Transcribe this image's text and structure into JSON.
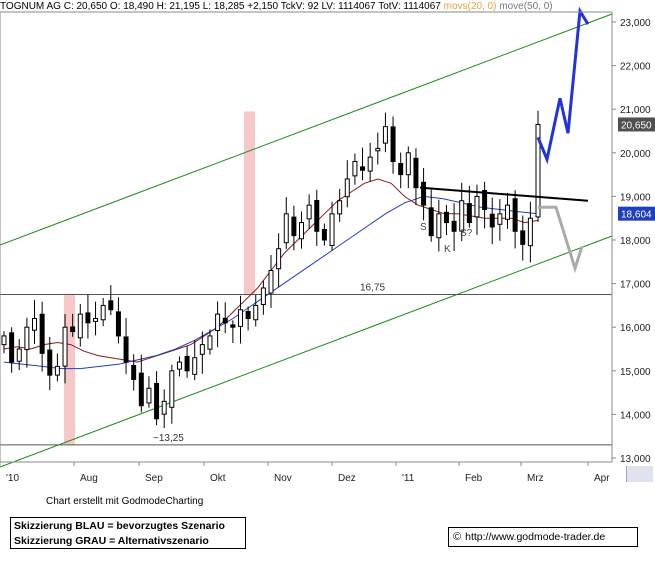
{
  "header": {
    "name": "TOGNUM AG",
    "close": "C: 20,650",
    "open": "O: 18,490",
    "high": "H: 21,195",
    "low": "L: 18,285",
    "change": "+2,150",
    "tickvolume": "TckV: 92",
    "lv": "LV: 1114067",
    "totv": "TotV: 1114067",
    "ma1": "movs(20, 0)",
    "ma2": "move(50, 0)"
  },
  "footer": {
    "credit": "Chart erstellt mit GodmodeCharting",
    "legend_blue": "Skizzierung BLAU = bevorzugtes Szenario",
    "legend_grey": "Skizzierung GRAU = Alternativszenario",
    "copyright": "©",
    "url": "http://www.godmode-trader.de"
  },
  "colors": {
    "candles": "#000000",
    "ma20": "#8b1a1a",
    "ma50": "#1f3fbf",
    "channel": "#1a8a1a",
    "highlight": "#f8c8c8",
    "blue_scenario": "#2233dd",
    "grey_scenario": "#aaaaaa",
    "last_price_bg": "#505050",
    "ma_value_bg": "#1f3fbf"
  },
  "chart_data": {
    "type": "candlestick",
    "x_labels": [
      "'10",
      "Aug",
      "Sep",
      "Okt",
      "Nov",
      "Dez",
      "'11",
      "Feb",
      "Mrz",
      "Apr"
    ],
    "y_ticks": [
      13.0,
      14.0,
      15.0,
      16.0,
      17.0,
      18.0,
      19.0,
      20.0,
      21.0,
      22.0,
      23.0
    ],
    "y_tick_labels": [
      "13,000",
      "14,000",
      "15,000",
      "16,000",
      "17,000",
      "18,000",
      "19,000",
      "20,000",
      "21,000",
      "22,000",
      "23,000"
    ],
    "ylim": [
      12.9,
      23.8
    ],
    "last_price": "20,650",
    "ma_value": "18,604",
    "horizontal_levels": [
      {
        "value": 16.75,
        "label": "16,75"
      },
      {
        "value": 13.3,
        "label": "~13,25"
      }
    ],
    "pattern_labels": [
      "S",
      "K",
      "S?"
    ],
    "close_series": [
      15.8,
      15.2,
      15.5,
      16.0,
      16.2,
      15.4,
      14.9,
      15.1,
      16.0,
      15.9,
      16.3,
      16.1,
      16.2,
      16.5,
      16.4,
      15.8,
      15.2,
      14.8,
      14.2,
      14.6,
      13.9,
      14.3,
      15.0,
      15.2,
      15.0,
      15.3,
      15.6,
      15.8,
      16.3,
      16.1,
      16.0,
      16.4,
      16.2,
      16.5,
      16.9,
      17.3,
      17.8,
      18.6,
      18.1,
      18.4,
      18.8,
      18.2,
      18.0,
      18.6,
      18.9,
      19.4,
      19.8,
      19.6,
      19.9,
      20.1,
      20.6,
      19.8,
      19.5,
      20.0,
      19.2,
      18.8,
      18.1,
      18.6,
      18.4,
      18.2,
      18.9,
      18.4,
      19.0,
      18.7,
      18.3,
      18.6,
      18.8,
      18.2,
      17.9,
      18.5,
      20.65
    ],
    "ma20_series": [
      15.5,
      15.55,
      15.5,
      15.6,
      15.65,
      15.6,
      15.45,
      15.35,
      15.3,
      15.25,
      15.2,
      15.3,
      15.4,
      15.5,
      15.6,
      15.8,
      16.0,
      16.3,
      16.6,
      16.9,
      17.3,
      17.7,
      18.0,
      18.3,
      18.6,
      18.9,
      19.1,
      19.3,
      19.4,
      19.3,
      19.0,
      18.8,
      18.7,
      18.6,
      18.6,
      18.55,
      18.5,
      18.5,
      18.5,
      18.4,
      18.45
    ],
    "ma50_series": [
      15.2,
      15.15,
      15.1,
      15.05,
      15.05,
      15.1,
      15.15,
      15.25,
      15.35,
      15.5,
      15.7,
      15.95,
      16.2,
      16.5,
      16.8,
      17.1,
      17.4,
      17.7,
      18.0,
      18.3,
      18.6,
      18.85,
      19.0,
      18.95,
      18.85,
      18.75,
      18.7,
      18.65,
      18.6
    ]
  }
}
